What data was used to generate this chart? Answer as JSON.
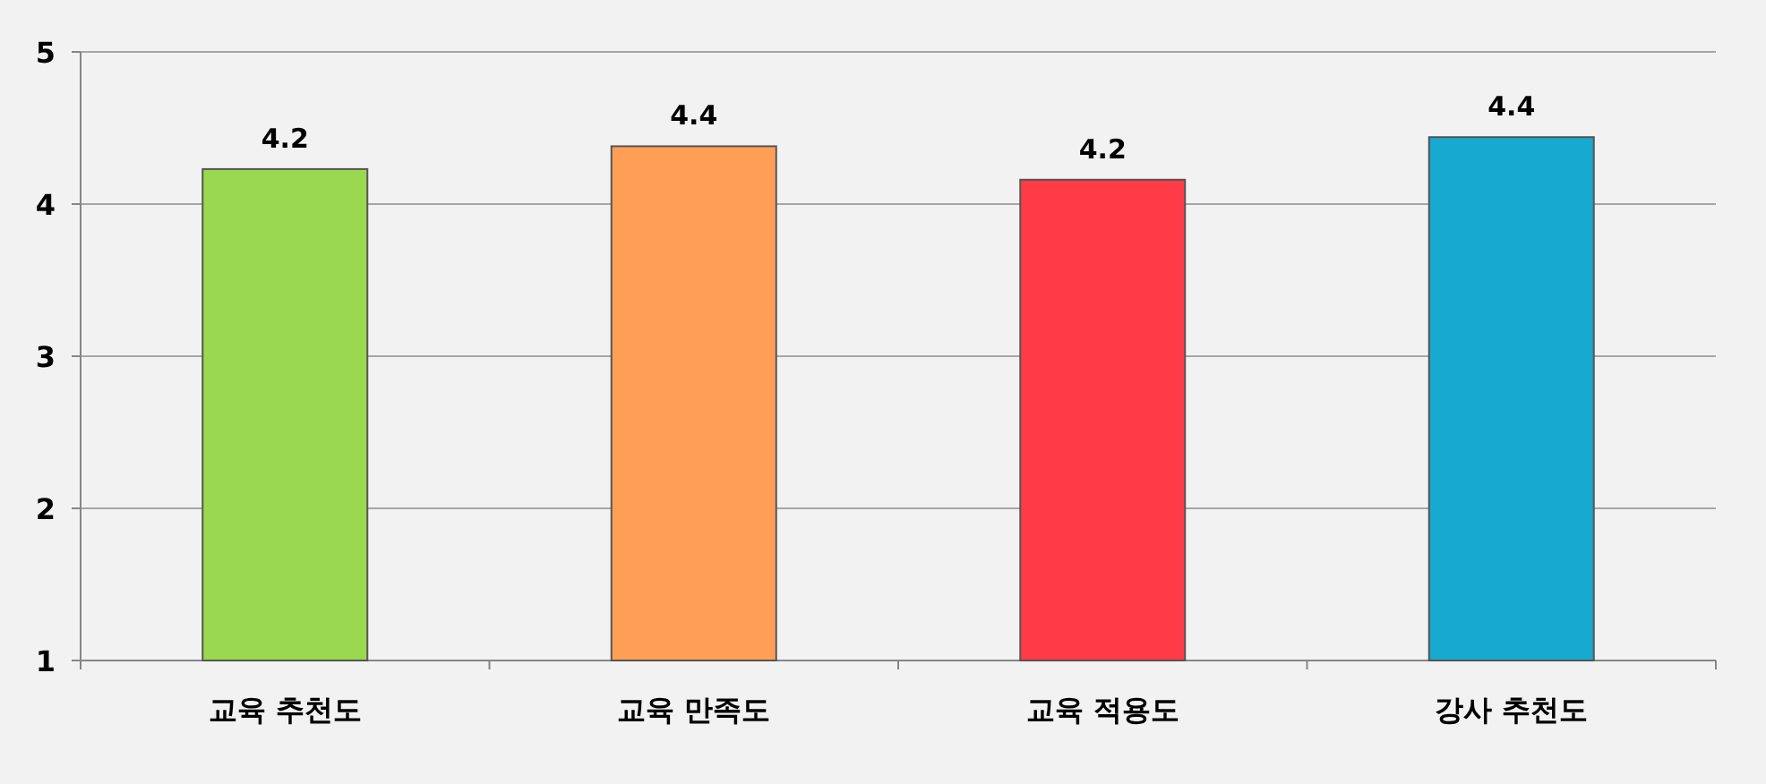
{
  "chart_data": {
    "type": "bar",
    "categories": [
      "교육 추천도",
      "교육 만족도",
      "교육 적용도",
      "강사 추천도"
    ],
    "values": [
      4.23,
      4.38,
      4.16,
      4.44
    ],
    "colors": [
      "#99d84f",
      "#ff9f55",
      "#ff3b47",
      "#17a9cf"
    ],
    "value_labels": [
      "4.2",
      "4.4",
      "4.2",
      "4.4"
    ],
    "ylim": [
      1,
      5
    ],
    "yticks": [
      1,
      2,
      3,
      4,
      5
    ],
    "grid": "y"
  }
}
